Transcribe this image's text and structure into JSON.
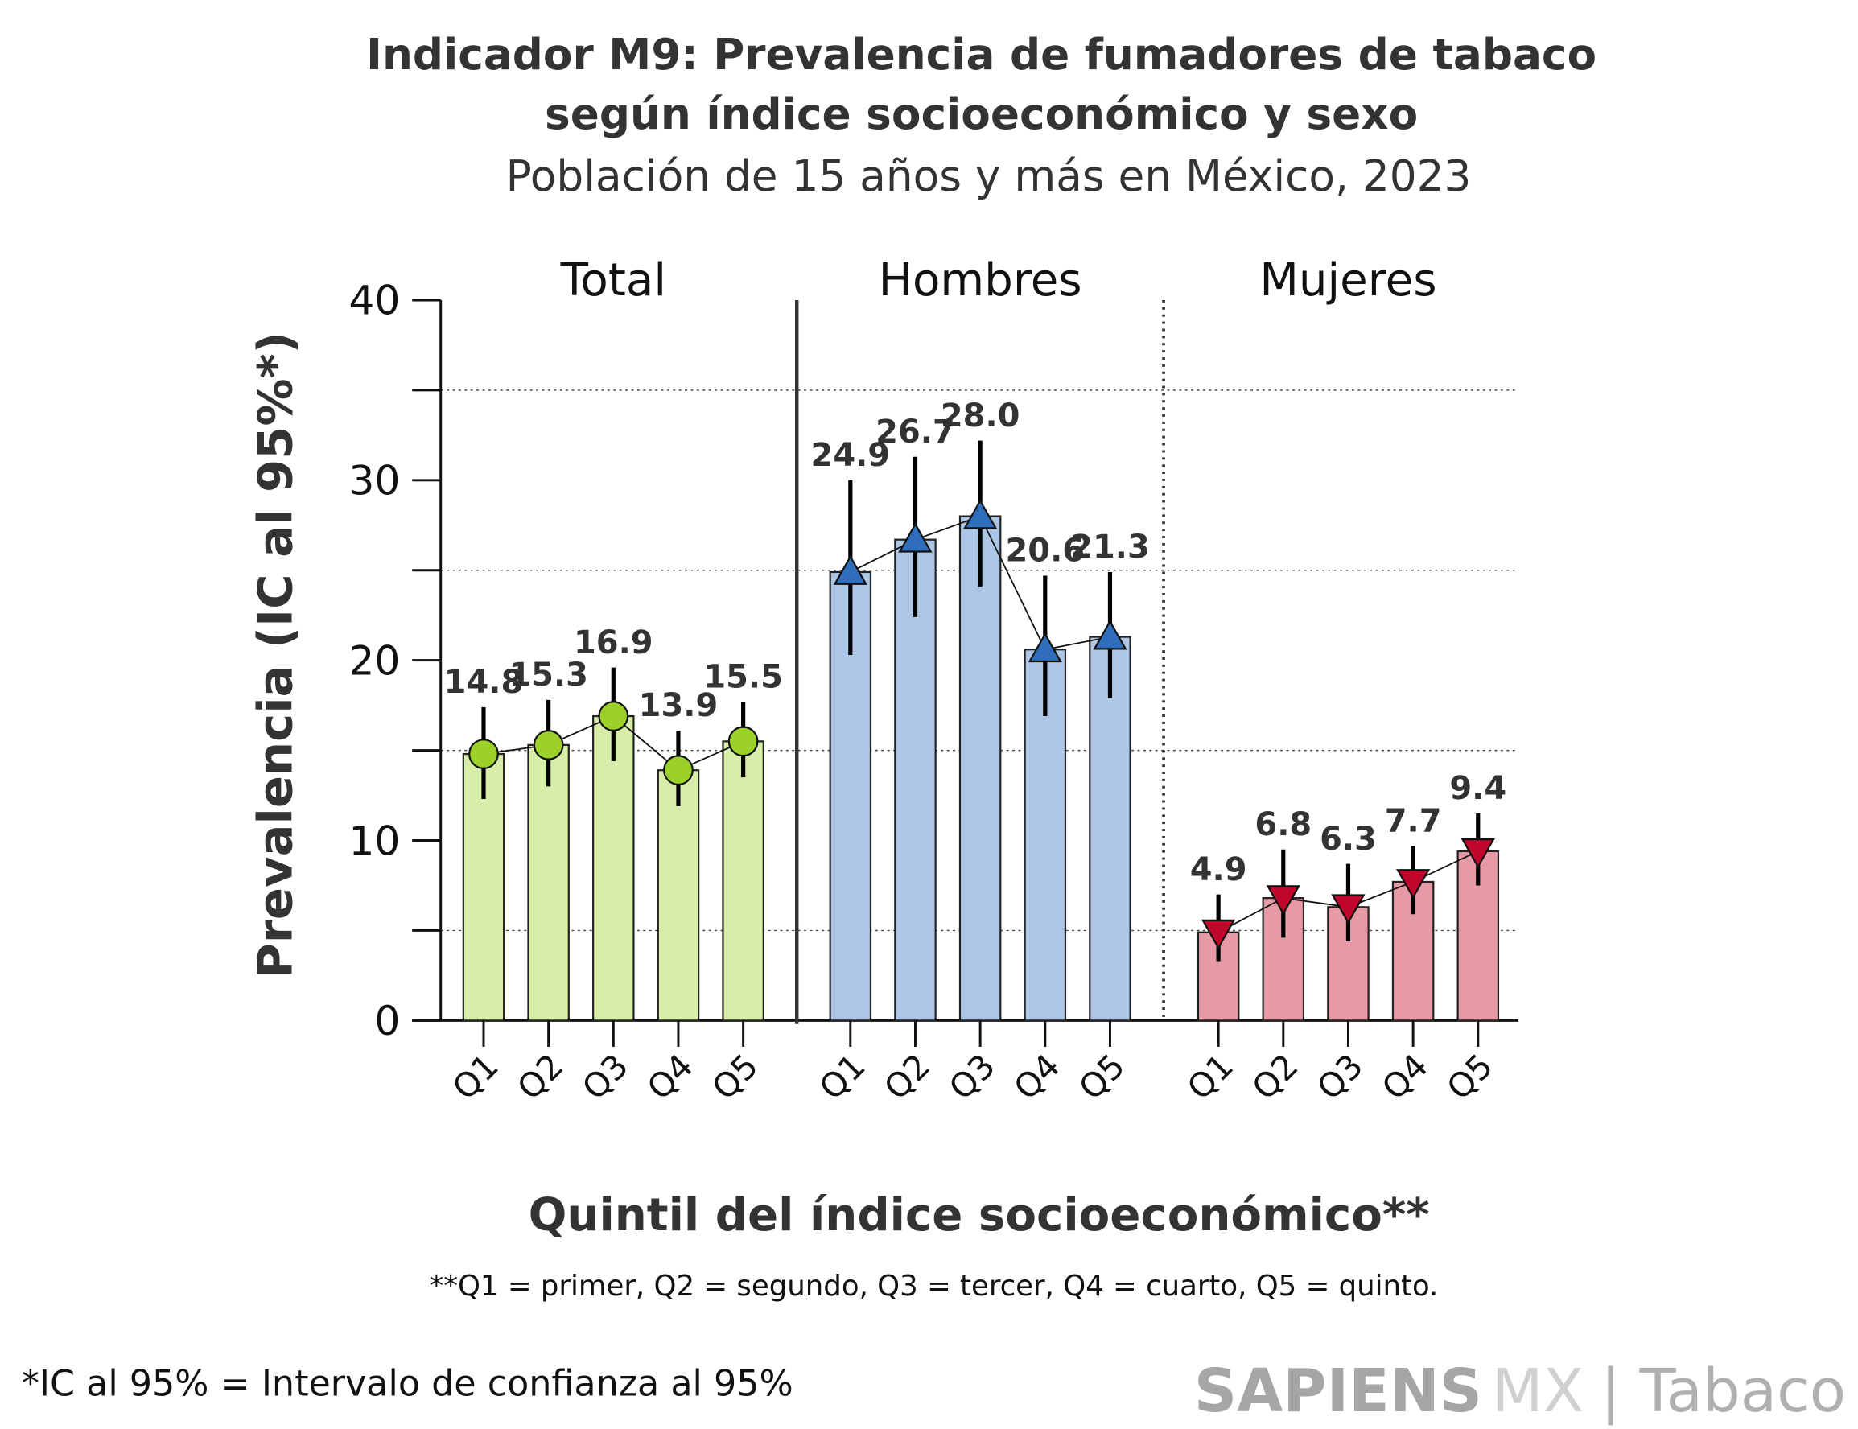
{
  "chart_data": {
    "type": "bar",
    "title_line1": "Indicador M9: Prevalencia de fumadores de tabaco",
    "title_line2": "según índice socioeconómico y sexo",
    "subtitle": "Población de 15 años y más en México, 2023",
    "ylabel": "Prevalencia (IC al 95%*)",
    "xlabel": "Quintil del índice socioeconómico**",
    "ylim": [
      0,
      40
    ],
    "yticks": [
      "0",
      "10",
      "20",
      "30",
      "40"
    ],
    "grid": "dotted at 5, 15, 25, 35",
    "categories": [
      "Q1",
      "Q2",
      "Q3",
      "Q4",
      "Q5"
    ],
    "series": [
      {
        "name": "Total",
        "values": [
          14.8,
          15.3,
          16.9,
          13.9,
          15.5
        ],
        "labels": [
          "14.8",
          "15.3",
          "16.9",
          "13.9",
          "15.5"
        ],
        "ci_low": [
          12.3,
          13.0,
          14.4,
          11.9,
          13.5
        ],
        "ci_high": [
          17.4,
          17.8,
          19.6,
          16.1,
          17.7
        ],
        "bar_color": "#d9edaa",
        "marker_color": "#9cd129",
        "marker": "circle"
      },
      {
        "name": "Hombres",
        "values": [
          24.9,
          26.7,
          28.0,
          20.6,
          21.3
        ],
        "labels": [
          "24.9",
          "26.7",
          "28.0",
          "20.6",
          "21.3"
        ],
        "ci_low": [
          20.3,
          22.4,
          24.1,
          16.9,
          17.9
        ],
        "ci_high": [
          30.0,
          31.3,
          32.2,
          24.7,
          24.9
        ],
        "bar_color": "#adc6e5",
        "marker_color": "#2f6dbd",
        "marker": "triangle-up"
      },
      {
        "name": "Mujeres",
        "values": [
          4.9,
          6.8,
          6.3,
          7.7,
          9.4
        ],
        "labels": [
          "4.9",
          "6.8",
          "6.3",
          "7.7",
          "9.4"
        ],
        "ci_low": [
          3.3,
          4.6,
          4.4,
          5.9,
          7.5
        ],
        "ci_high": [
          7.0,
          9.5,
          8.7,
          9.7,
          11.5
        ],
        "bar_color": "#e59aa6",
        "marker_color": "#c0062a",
        "marker": "triangle-down"
      }
    ]
  },
  "footnotes": {
    "quintiles": "**Q1 = primer, Q2 = segundo, Q3 = tercer, Q4 = cuarto, Q5 = quinto.",
    "ci": "*IC al 95% = Intervalo de confianza al 95%"
  },
  "brand": {
    "name": "SAPIENS",
    "suffix": "MX",
    "section": "| Tabaco"
  }
}
